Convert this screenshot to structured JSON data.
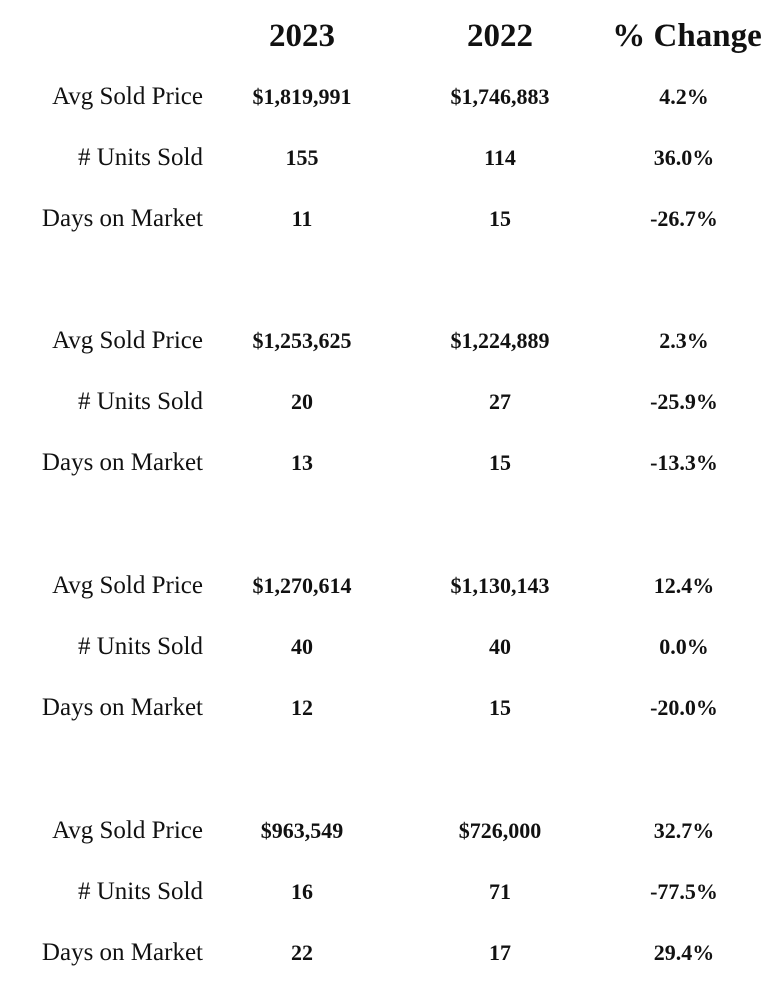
{
  "header": {
    "col_2023": "2023",
    "col_2022": "2022",
    "col_change": "% Change"
  },
  "groups": [
    {
      "rows": [
        {
          "label": "Avg Sold Price",
          "v2023": "$1,819,991",
          "v2022": "$1,746,883",
          "change": "4.2%"
        },
        {
          "label": "# Units Sold",
          "v2023": "155",
          "v2022": "114",
          "change": "36.0%"
        },
        {
          "label": "Days on Market",
          "v2023": "11",
          "v2022": "15",
          "change": "-26.7%"
        }
      ]
    },
    {
      "rows": [
        {
          "label": "Avg Sold Price",
          "v2023": "$1,253,625",
          "v2022": "$1,224,889",
          "change": "2.3%"
        },
        {
          "label": "# Units Sold",
          "v2023": "20",
          "v2022": "27",
          "change": "-25.9%"
        },
        {
          "label": "Days on Market",
          "v2023": "13",
          "v2022": "15",
          "change": "-13.3%"
        }
      ]
    },
    {
      "rows": [
        {
          "label": "Avg Sold Price",
          "v2023": "$1,270,614",
          "v2022": "$1,130,143",
          "change": "12.4%"
        },
        {
          "label": "# Units Sold",
          "v2023": "40",
          "v2022": "40",
          "change": "0.0%"
        },
        {
          "label": "Days on Market",
          "v2023": "12",
          "v2022": "15",
          "change": "-20.0%"
        }
      ]
    },
    {
      "rows": [
        {
          "label": "Avg Sold Price",
          "v2023": "$963,549",
          "v2022": "$726,000",
          "change": "32.7%"
        },
        {
          "label": "# Units Sold",
          "v2023": "16",
          "v2022": "71",
          "change": "-77.5%"
        },
        {
          "label": "Days on Market",
          "v2023": "22",
          "v2022": "17",
          "change": "29.4%"
        }
      ]
    }
  ]
}
